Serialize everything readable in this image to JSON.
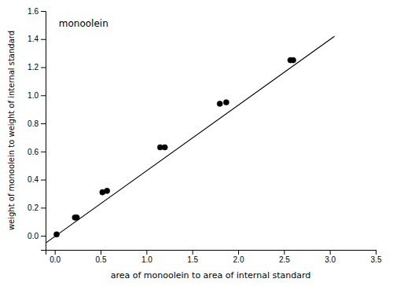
{
  "chart_data": {
    "type": "scatter",
    "xlabel": "area of monoolein to area of internal standard",
    "ylabel": "weight of monoolein to weight of internal standard",
    "annotation": "monoolein",
    "series": [
      {
        "type": "scatter",
        "color": "black",
        "marker": "circle",
        "x": [
          0.02,
          0.22,
          0.24,
          0.52,
          0.57,
          1.15,
          1.2,
          1.8,
          1.87,
          2.57,
          2.6
        ],
        "values": [
          0.01,
          0.13,
          0.13,
          0.31,
          0.32,
          0.63,
          0.63,
          0.94,
          0.95,
          1.25,
          1.25
        ]
      },
      {
        "type": "line",
        "color": "black",
        "line_style": "solid",
        "x": [
          -0.1,
          3.05
        ],
        "values": [
          -0.0517,
          1.41935
        ]
      }
    ],
    "xlim": [
      -0.1,
      3.5
    ],
    "ylim": [
      -0.1,
      1.6
    ],
    "xticks": [
      {
        "value": 0,
        "label": "0.0"
      },
      {
        "value": 0.5,
        "label": "0.5"
      },
      {
        "value": 1,
        "label": "1.0"
      },
      {
        "value": 1.5,
        "label": "1.5"
      },
      {
        "value": 2,
        "label": "2.0"
      },
      {
        "value": 2.5,
        "label": "2.5"
      },
      {
        "value": 3,
        "label": "3.0"
      },
      {
        "value": 3.5,
        "label": "3.5"
      }
    ],
    "yticks": [
      {
        "value": 0,
        "label": "0.0"
      },
      {
        "value": 0.2,
        "label": "0.2"
      },
      {
        "value": 0.4,
        "label": "0.4"
      },
      {
        "value": 0.6,
        "label": "0.6"
      },
      {
        "value": 0.8,
        "label": "0.8"
      },
      {
        "value": 1,
        "label": "1.0"
      },
      {
        "value": 1.2,
        "label": "1.2"
      },
      {
        "value": 1.4,
        "label": "1.4"
      },
      {
        "value": 1.6,
        "label": "1.6"
      }
    ],
    "grid": false
  }
}
